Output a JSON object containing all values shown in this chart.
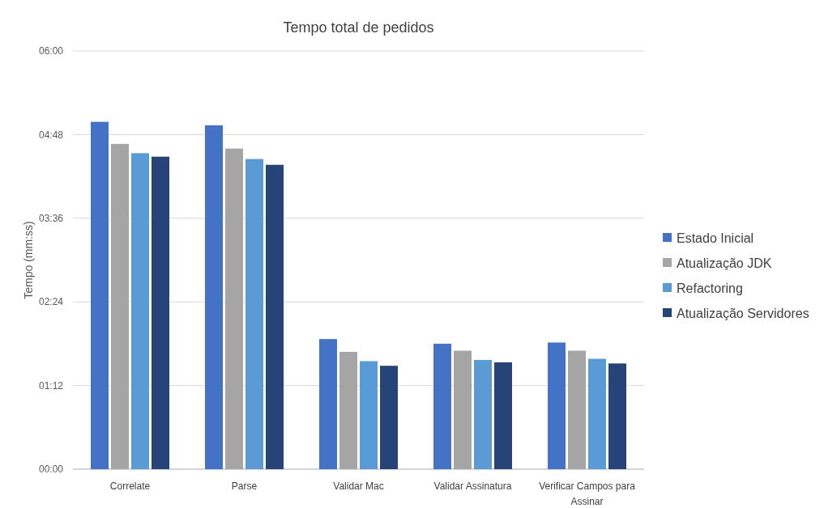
{
  "chart_data": {
    "type": "bar",
    "title": "Tempo total de pedidos",
    "ylabel": "Tempo (mm:ss)",
    "categories": [
      "Correlate",
      "Parse",
      "Validar Mac",
      "Validar Assinatura",
      "Verificar Campos para Assinar"
    ],
    "series": [
      {
        "name": "Estado Inicial",
        "color": "#4472c4",
        "values": [
          299,
          296,
          112,
          108,
          109
        ]
      },
      {
        "name": "Atualização JDK",
        "color": "#a5a5a5",
        "values": [
          280,
          276,
          101,
          102,
          102
        ]
      },
      {
        "name": "Refactoring",
        "color": "#5b9bd5",
        "values": [
          272,
          267,
          93,
          94,
          95
        ]
      },
      {
        "name": "Atualização Servidores",
        "color": "#264478",
        "values": [
          269,
          262,
          89,
          92,
          91
        ]
      }
    ],
    "ylim": [
      0,
      360
    ],
    "yticks": [
      {
        "value": 0,
        "label": "00:00"
      },
      {
        "value": 72,
        "label": "01:12"
      },
      {
        "value": 144,
        "label": "02:24"
      },
      {
        "value": 216,
        "label": "03:36"
      },
      {
        "value": 288,
        "label": "04:48"
      },
      {
        "value": 360,
        "label": "06:00"
      }
    ],
    "grid": "y",
    "legend": "right"
  }
}
